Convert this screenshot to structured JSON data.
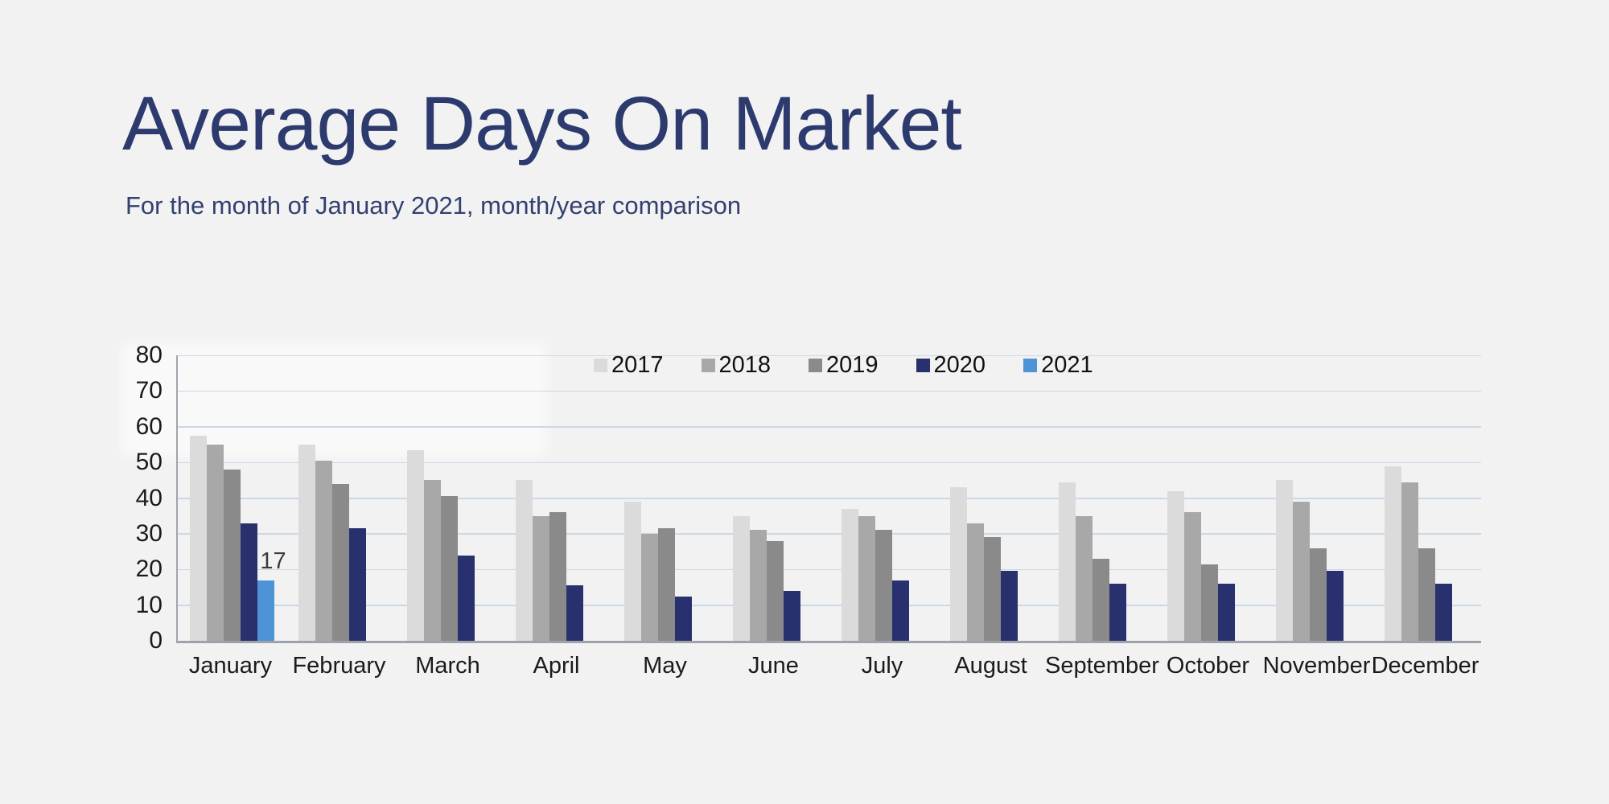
{
  "header": {
    "title": "Average Days On Market",
    "subtitle": "For the month of January 2021, month/year comparison"
  },
  "theme": {
    "background": "#f2f2f3",
    "title_color": "#2d3a6e",
    "subtitle_color": "#334070",
    "gridline_color": "#ccd7e8",
    "axis_color": "#9fa3a9",
    "tick_text_color": "#1b1b1b",
    "legend_text_color": "#111111",
    "data_label_color": "#3a3a3a"
  },
  "chart_data": {
    "type": "bar",
    "title": "Average Days On Market",
    "subtitle": "For the month of January 2021, month/year comparison",
    "categories": [
      "January",
      "February",
      "March",
      "April",
      "May",
      "June",
      "July",
      "August",
      "September",
      "October",
      "November",
      "December"
    ],
    "series": [
      {
        "name": "2017",
        "color": "#dbdbdb",
        "values": [
          57.5,
          55,
          53.5,
          45,
          39,
          35,
          37,
          43,
          44.5,
          42,
          45,
          49
        ]
      },
      {
        "name": "2018",
        "color": "#a8a8a8",
        "values": [
          55,
          50.5,
          45,
          35,
          30,
          31,
          35,
          33,
          35,
          36,
          39,
          44.5
        ]
      },
      {
        "name": "2019",
        "color": "#8a8a8a",
        "values": [
          48,
          44,
          40.5,
          36,
          31.5,
          28,
          31,
          29,
          23,
          21.5,
          26,
          26
        ]
      },
      {
        "name": "2020",
        "color": "#28316e",
        "values": [
          33,
          31.5,
          24,
          15.5,
          12.5,
          14,
          17,
          19.5,
          16,
          16,
          19.5,
          16
        ]
      },
      {
        "name": "2021",
        "color": "#4d93d5",
        "values": [
          17,
          null,
          null,
          null,
          null,
          null,
          null,
          null,
          null,
          null,
          null,
          null
        ],
        "show_data_labels": true
      }
    ],
    "data_labels": [
      {
        "series": "2021",
        "category": "January",
        "text": "17"
      }
    ],
    "xlabel": "",
    "ylabel": "",
    "ylim": [
      0,
      80
    ],
    "yticks": [
      0,
      10,
      20,
      30,
      40,
      50,
      60,
      70,
      80
    ],
    "grid": true,
    "legend_position": "top"
  }
}
